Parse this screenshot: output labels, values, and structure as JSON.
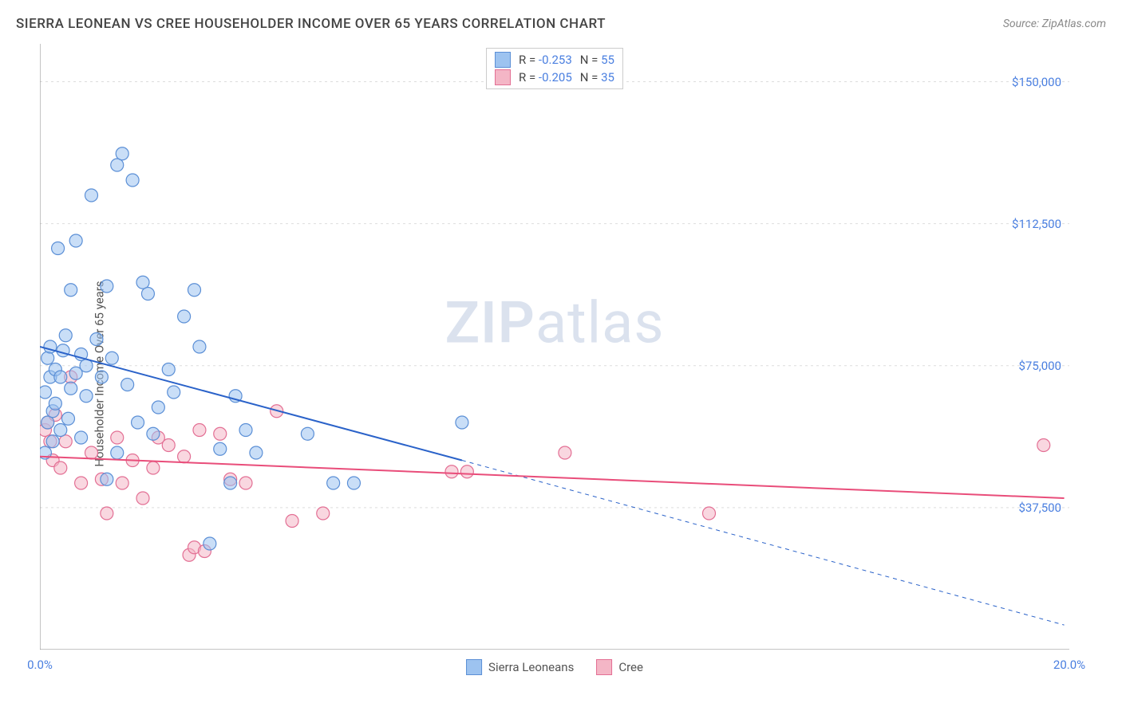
{
  "title": "SIERRA LEONEAN VS CREE HOUSEHOLDER INCOME OVER 65 YEARS CORRELATION CHART",
  "source_label": "Source: ZipAtlas.com",
  "ylabel": "Householder Income Over 65 years",
  "watermark_zip": "ZIP",
  "watermark_atlas": "atlas",
  "chart": {
    "type": "scatter",
    "xlim": [
      0,
      20
    ],
    "ylim": [
      0,
      160000
    ],
    "x_ticks_minor": [
      0,
      2,
      4,
      6,
      8,
      10,
      12,
      14,
      16,
      18,
      20
    ],
    "x_ticks_labeled": [
      {
        "v": 0,
        "label": "0.0%"
      },
      {
        "v": 20,
        "label": "20.0%"
      }
    ],
    "y_grid": [
      37500,
      75000,
      112500,
      150000
    ],
    "y_tick_labels": [
      {
        "v": 37500,
        "label": "$37,500"
      },
      {
        "v": 75000,
        "label": "$75,000"
      },
      {
        "v": 112500,
        "label": "$112,500"
      },
      {
        "v": 150000,
        "label": "$150,000"
      }
    ],
    "grid_color": "#dddddd",
    "axis_color": "#888888",
    "background_color": "#ffffff",
    "marker_radius": 8,
    "marker_stroke_width": 1.2,
    "series": [
      {
        "name": "Sierra Leoneans",
        "fill": "#9dc3f0",
        "stroke": "#5b8fd6",
        "fill_opacity": 0.55,
        "trend": {
          "solid": {
            "x1": 0,
            "y1": 80000,
            "x2": 8.2,
            "y2": 50000
          },
          "dashed": {
            "x1": 8.2,
            "y1": 50000,
            "x2": 19.9,
            "y2": 6500
          },
          "stroke": "#2a62c9",
          "stroke_width": 2
        },
        "points": [
          [
            0.1,
            68000
          ],
          [
            0.1,
            52000
          ],
          [
            0.15,
            60000
          ],
          [
            0.15,
            77000
          ],
          [
            0.2,
            72000
          ],
          [
            0.2,
            80000
          ],
          [
            0.25,
            63000
          ],
          [
            0.25,
            55000
          ],
          [
            0.3,
            74000
          ],
          [
            0.3,
            65000
          ],
          [
            0.35,
            106000
          ],
          [
            0.4,
            58000
          ],
          [
            0.4,
            72000
          ],
          [
            0.45,
            79000
          ],
          [
            0.5,
            83000
          ],
          [
            0.55,
            61000
          ],
          [
            0.6,
            69000
          ],
          [
            0.6,
            95000
          ],
          [
            0.7,
            108000
          ],
          [
            0.7,
            73000
          ],
          [
            0.8,
            78000
          ],
          [
            0.8,
            56000
          ],
          [
            0.9,
            67000
          ],
          [
            0.9,
            75000
          ],
          [
            1.0,
            120000
          ],
          [
            1.1,
            82000
          ],
          [
            1.2,
            72000
          ],
          [
            1.3,
            96000
          ],
          [
            1.3,
            45000
          ],
          [
            1.4,
            77000
          ],
          [
            1.5,
            128000
          ],
          [
            1.5,
            52000
          ],
          [
            1.6,
            131000
          ],
          [
            1.7,
            70000
          ],
          [
            1.8,
            124000
          ],
          [
            1.9,
            60000
          ],
          [
            2.0,
            97000
          ],
          [
            2.1,
            94000
          ],
          [
            2.2,
            57000
          ],
          [
            2.3,
            64000
          ],
          [
            2.5,
            74000
          ],
          [
            2.6,
            68000
          ],
          [
            2.8,
            88000
          ],
          [
            3.0,
            95000
          ],
          [
            3.1,
            80000
          ],
          [
            3.3,
            28000
          ],
          [
            3.5,
            53000
          ],
          [
            3.7,
            44000
          ],
          [
            3.8,
            67000
          ],
          [
            4.0,
            58000
          ],
          [
            4.2,
            52000
          ],
          [
            5.2,
            57000
          ],
          [
            5.7,
            44000
          ],
          [
            6.1,
            44000
          ],
          [
            8.2,
            60000
          ]
        ]
      },
      {
        "name": "Cree",
        "fill": "#f4b6c6",
        "stroke": "#e36f94",
        "fill_opacity": 0.55,
        "trend": {
          "solid": {
            "x1": 0,
            "y1": 51000,
            "x2": 19.9,
            "y2": 40000
          },
          "dashed": null,
          "stroke": "#e94d7a",
          "stroke_width": 2
        },
        "points": [
          [
            0.1,
            58000
          ],
          [
            0.15,
            60000
          ],
          [
            0.2,
            55000
          ],
          [
            0.25,
            50000
          ],
          [
            0.3,
            62000
          ],
          [
            0.4,
            48000
          ],
          [
            0.5,
            55000
          ],
          [
            0.6,
            72000
          ],
          [
            0.8,
            44000
          ],
          [
            1.0,
            52000
          ],
          [
            1.2,
            45000
          ],
          [
            1.3,
            36000
          ],
          [
            1.5,
            56000
          ],
          [
            1.6,
            44000
          ],
          [
            1.8,
            50000
          ],
          [
            2.0,
            40000
          ],
          [
            2.2,
            48000
          ],
          [
            2.3,
            56000
          ],
          [
            2.5,
            54000
          ],
          [
            2.8,
            51000
          ],
          [
            2.9,
            25000
          ],
          [
            3.0,
            27000
          ],
          [
            3.1,
            58000
          ],
          [
            3.2,
            26000
          ],
          [
            3.5,
            57000
          ],
          [
            3.7,
            45000
          ],
          [
            4.0,
            44000
          ],
          [
            4.6,
            63000
          ],
          [
            4.9,
            34000
          ],
          [
            5.5,
            36000
          ],
          [
            8.0,
            47000
          ],
          [
            8.3,
            47000
          ],
          [
            10.2,
            52000
          ],
          [
            13.0,
            36000
          ],
          [
            19.5,
            54000
          ]
        ]
      }
    ]
  },
  "legend_top": [
    {
      "swatch_fill": "#9dc3f0",
      "swatch_stroke": "#5b8fd6",
      "r_label": "R =",
      "r_value": "-0.253",
      "n_label": "N =",
      "n_value": "55"
    },
    {
      "swatch_fill": "#f4b6c6",
      "swatch_stroke": "#e36f94",
      "r_label": "R =",
      "r_value": "-0.205",
      "n_label": "N =",
      "n_value": "35"
    }
  ],
  "legend_bottom": [
    {
      "swatch_fill": "#9dc3f0",
      "swatch_stroke": "#5b8fd6",
      "label": "Sierra Leoneans"
    },
    {
      "swatch_fill": "#f4b6c6",
      "swatch_stroke": "#e36f94",
      "label": "Cree"
    }
  ]
}
